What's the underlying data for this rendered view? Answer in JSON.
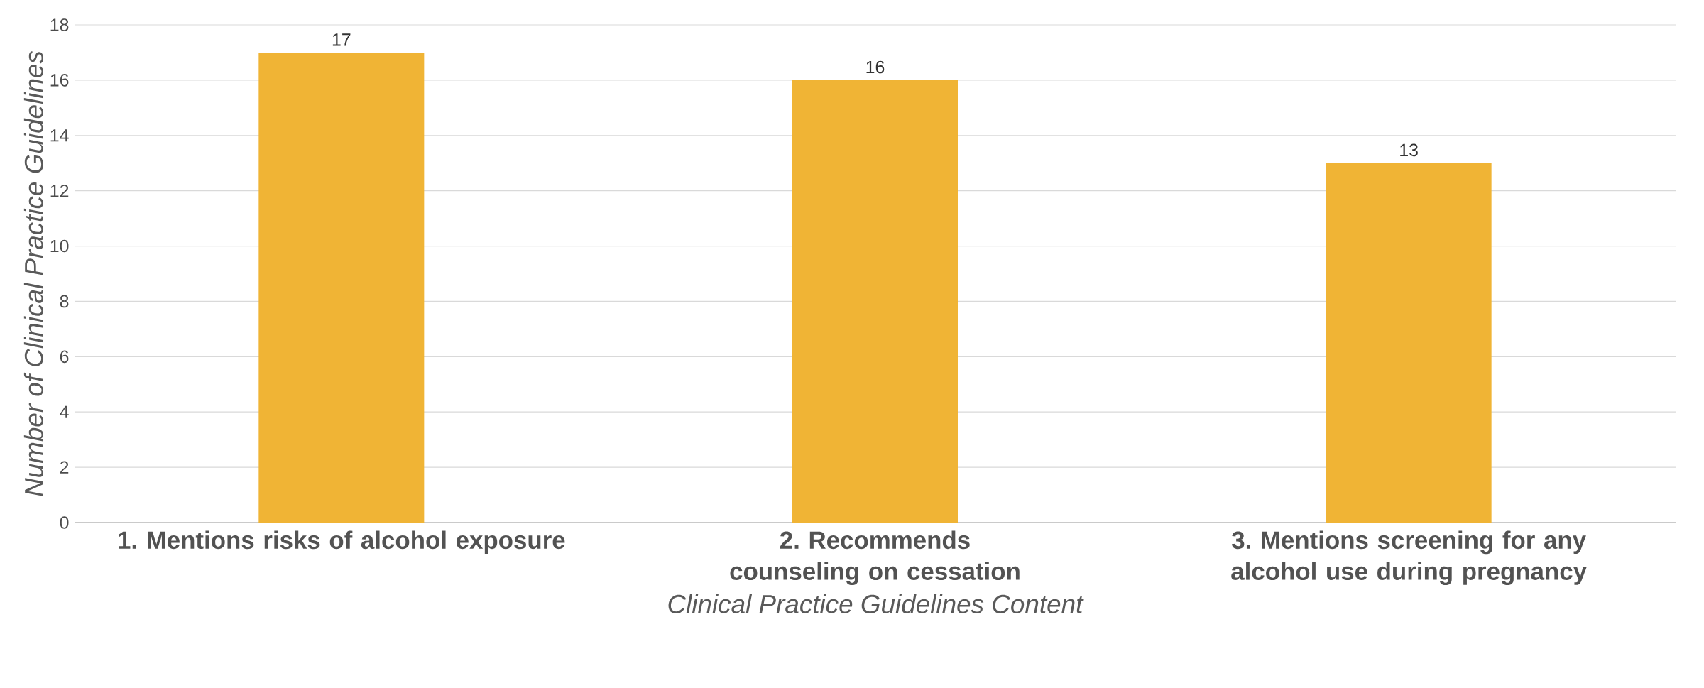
{
  "chart_data": {
    "type": "bar",
    "categories": [
      "1. Mentions risks of alcohol exposure",
      "2. Recommends counseling on cessation",
      "3. Mentions screening for any alcohol use during pregnancy"
    ],
    "values": [
      17,
      16,
      13
    ],
    "color": "#f0b435",
    "xlabel": "Clinical Practice Guidelines Content",
    "ylabel": "Number of Clinical Practice Guidelines",
    "ylim": [
      0,
      18
    ],
    "yticks": [
      0,
      2,
      4,
      6,
      8,
      10,
      12,
      14,
      16,
      18
    ],
    "grid": "y",
    "data_labels": true
  }
}
